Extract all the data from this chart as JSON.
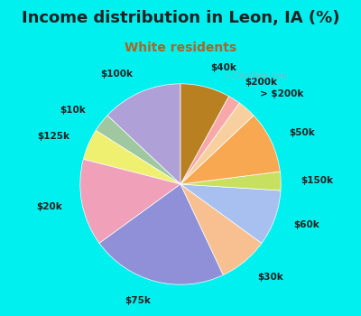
{
  "title": "Income distribution in Leon, IA (%)",
  "subtitle": "White residents",
  "bg_color": "#00EFEF",
  "chart_bg": "#e8f5ee",
  "labels": [
    "$100k",
    "$10k",
    "$125k",
    "$20k",
    "$75k",
    "$30k",
    "$60k",
    "$150k",
    "$50k",
    "> $200k",
    "$200k",
    "$40k"
  ],
  "values": [
    13,
    3,
    5,
    14,
    22,
    8,
    9,
    3,
    10,
    3,
    2,
    8
  ],
  "colors": [
    "#b0a0d8",
    "#a0c8a0",
    "#f0f070",
    "#f0a0b8",
    "#9090d8",
    "#f8c090",
    "#a8c0f0",
    "#c8e060",
    "#f8a850",
    "#f8d0a0",
    "#f8a8a8",
    "#b88020"
  ],
  "startangle": 90,
  "label_fontsize": 7.5,
  "title_fontsize": 13,
  "subtitle_fontsize": 10,
  "subtitle_color": "#aa6622"
}
